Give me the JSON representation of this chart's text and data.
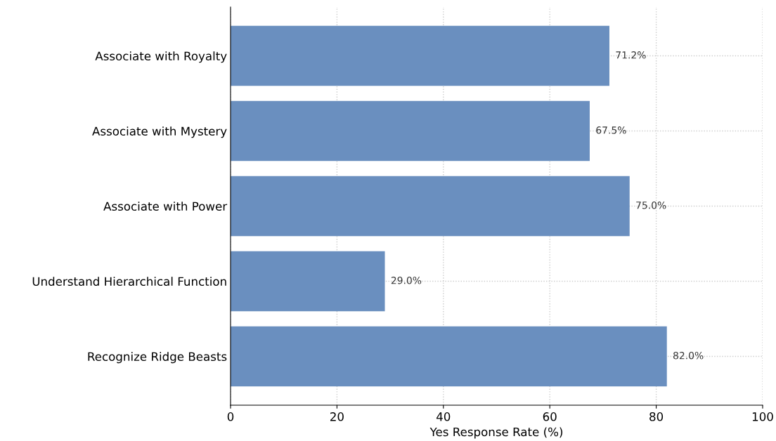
{
  "chart_data": {
    "type": "bar",
    "orientation": "horizontal",
    "xlabel": "Yes Response Rate (%)",
    "categories": [
      "Associate with Royalty",
      "Associate with Mystery",
      "Associate with Power",
      "Understand Hierarchical Function",
      "Recognize Ridge Beasts"
    ],
    "values": [
      71.2,
      67.5,
      75.0,
      29.0,
      82.0
    ],
    "value_labels": [
      "71.2%",
      "67.5%",
      "75.0%",
      "29.0%",
      "82.0%"
    ],
    "color": "#6a8fbf",
    "xlim": [
      0,
      100
    ],
    "xticks": [
      0,
      20,
      40,
      60,
      80,
      100
    ],
    "grid": true
  }
}
